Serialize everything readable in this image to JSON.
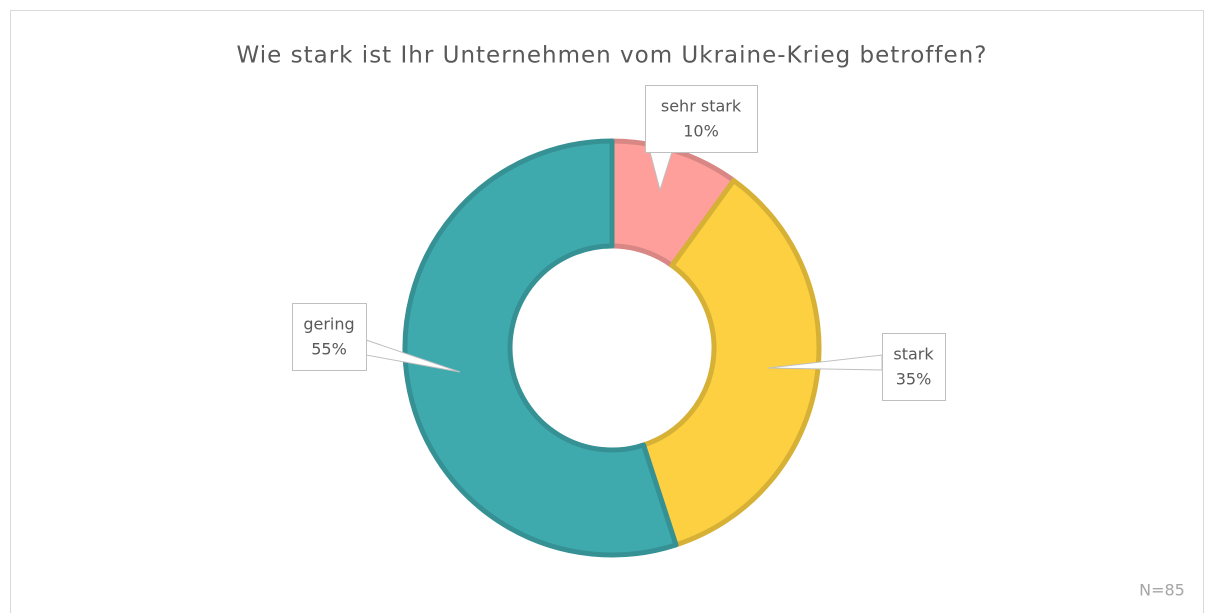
{
  "chart_data": {
    "type": "donut",
    "title": "Wie stark ist Ihr Unternehmen vom Ukraine-Krieg betroffen?",
    "categories": [
      "sehr stark",
      "stark",
      "gering"
    ],
    "values": [
      10,
      35,
      55
    ],
    "value_labels": [
      "10%",
      "35%",
      "55%"
    ],
    "colors": [
      "#ff9f9b",
      "#fcd040",
      "#3faaae"
    ],
    "annotation": "N=85"
  }
}
